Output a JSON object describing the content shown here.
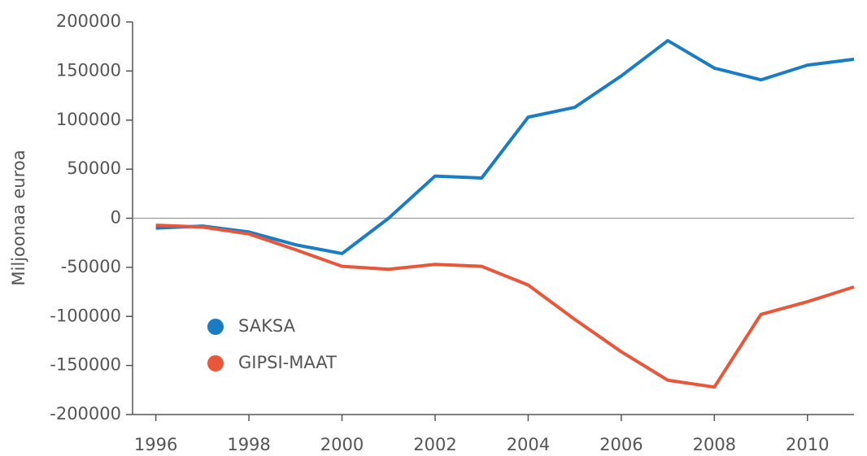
{
  "chart_data": {
    "type": "line",
    "y_label": "Miljoonaa euroa",
    "x": [
      1996,
      1997,
      1998,
      1999,
      2000,
      2001,
      2002,
      2003,
      2004,
      2005,
      2006,
      2007,
      2008,
      2009,
      2010,
      2011
    ],
    "series": [
      {
        "name": "SAKSA",
        "color": "#1a7dc4",
        "values": [
          -10000,
          -8000,
          -14000,
          -27000,
          -36000,
          0,
          43000,
          41000,
          103000,
          113000,
          145000,
          181000,
          153000,
          141000,
          156000,
          162000
        ]
      },
      {
        "name": "GIPSI-MAAT",
        "color": "#e8573a",
        "values": [
          -7000,
          -9000,
          -16000,
          -32000,
          -49000,
          -52000,
          -47000,
          -49000,
          -68000,
          -103000,
          -136000,
          -165000,
          -172000,
          -98000,
          -85000,
          -70000
        ]
      }
    ],
    "xlim": [
      1995.5,
      2011
    ],
    "xticks": [
      1996,
      1998,
      2000,
      2002,
      2004,
      2006,
      2008,
      2010
    ],
    "ylim": [
      -200000,
      200000
    ],
    "yticks": [
      -200000,
      -150000,
      -100000,
      -50000,
      0,
      50000,
      100000,
      150000,
      200000
    ]
  }
}
